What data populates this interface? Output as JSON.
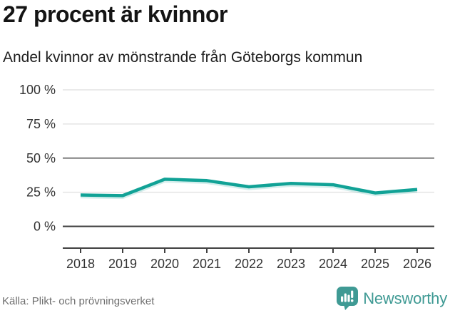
{
  "header": {
    "title": "27 procent är kvinnor",
    "subtitle": "Andel kvinnor av mönstrande från Göteborgs kommun"
  },
  "footer": {
    "source": "Källa: Plikt- och prövningsverket",
    "brand": "Newsworthy"
  },
  "colors": {
    "line": "#11a296",
    "brand_teal": "#3f9a94",
    "grid_light": "#e4e4e4",
    "grid_benchmark": "#7f7f7f",
    "axis": "#404040",
    "title_text": "#141414",
    "subtitle_text": "#1d1d1d",
    "tick_text": "#333333",
    "source_text": "#6f6f6f"
  },
  "chart_data": {
    "type": "line",
    "title": "27 procent är kvinnor",
    "subtitle": "Andel kvinnor av mönstrande från Göteborgs kommun",
    "x": [
      "2018",
      "2019",
      "2020",
      "2021",
      "2022",
      "2023",
      "2024",
      "2025",
      "2026"
    ],
    "series": [
      {
        "name": "Andel kvinnor av mönstrande, Göteborgs kommun",
        "values": [
          23,
          22.5,
          34.5,
          33.5,
          29,
          31.5,
          30.5,
          24.5,
          27
        ]
      }
    ],
    "unit": "%",
    "ylim": [
      0,
      100
    ],
    "yticks": [
      {
        "value": 100,
        "label": "100 %"
      },
      {
        "value": 75,
        "label": "75 %"
      },
      {
        "value": 50,
        "label": "50 %"
      },
      {
        "value": 25,
        "label": "25 %"
      },
      {
        "value": 0,
        "label": "0 %"
      }
    ],
    "benchmark_value": 50,
    "grid": true,
    "legend": false,
    "source": "Källa: Plikt- och prövningsverket"
  }
}
